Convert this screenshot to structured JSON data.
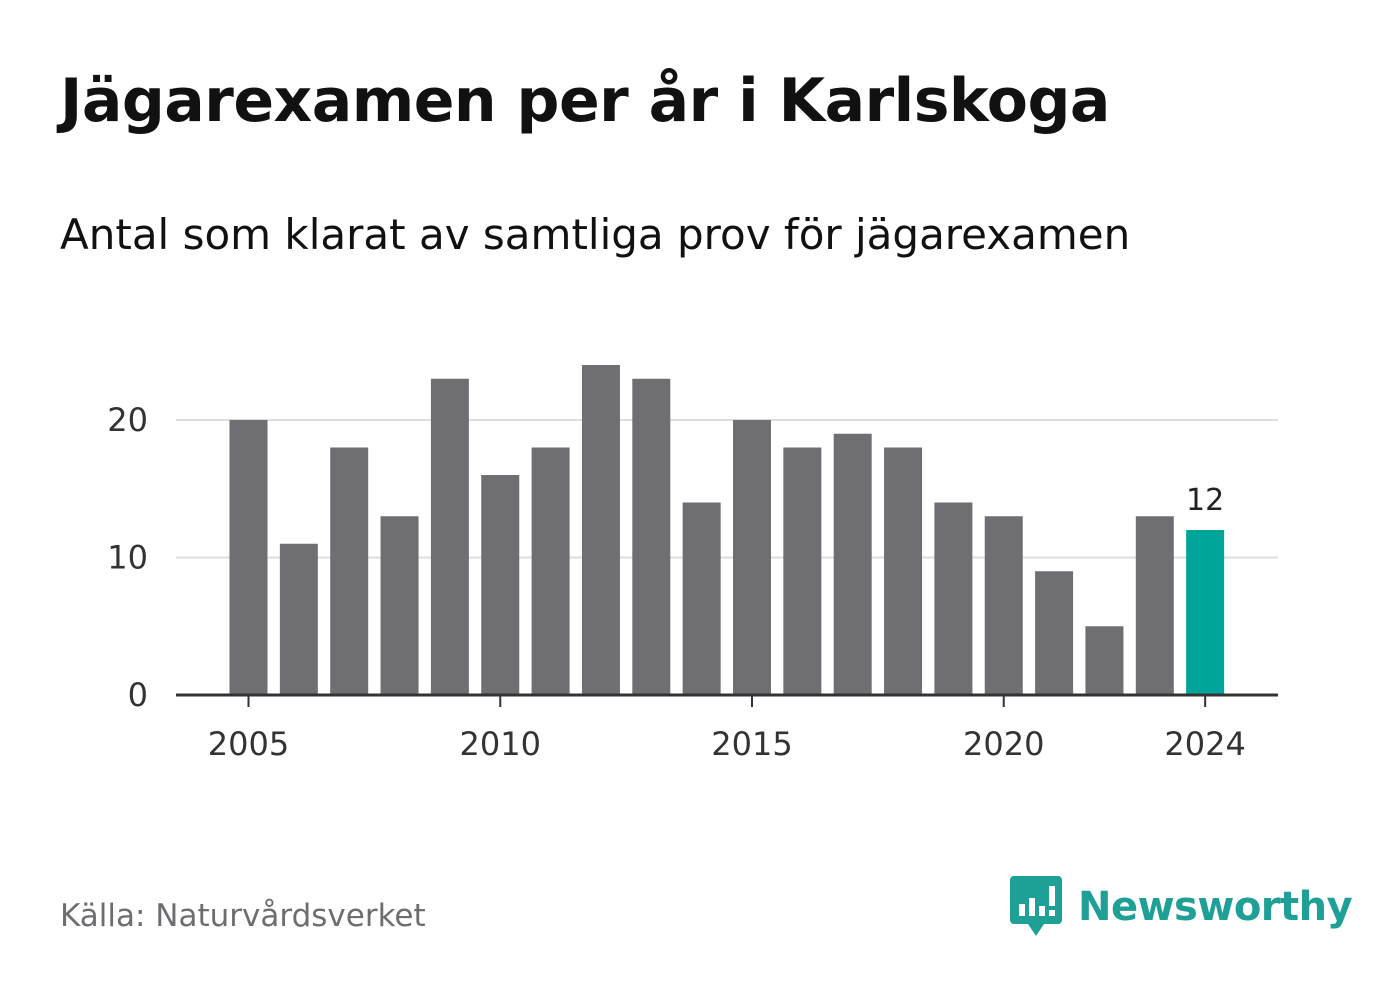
{
  "header": {
    "title": "Jägarexamen per år i Karlskoga",
    "subtitle": "Antal som klarat av samtliga prov för jägarexamen"
  },
  "chart_data": {
    "type": "bar",
    "title": "Jägarexamen per år i Karlskoga",
    "subtitle": "Antal som klarat av samtliga prov för jägarexamen",
    "xlabel": "",
    "ylabel": "",
    "categories": [
      2005,
      2006,
      2007,
      2008,
      2009,
      2010,
      2011,
      2012,
      2013,
      2014,
      2015,
      2016,
      2017,
      2018,
      2019,
      2020,
      2021,
      2022,
      2023,
      2024
    ],
    "values": [
      20,
      11,
      18,
      13,
      23,
      16,
      18,
      24,
      23,
      14,
      20,
      18,
      19,
      18,
      14,
      13,
      9,
      5,
      13,
      12
    ],
    "x_tick_labels": [
      2005,
      2010,
      2015,
      2020,
      2024
    ],
    "y_ticks": [
      0,
      10,
      20
    ],
    "ylim": [
      0,
      24
    ],
    "grid": "horizontal",
    "highlight": {
      "category": 2024,
      "value": 12,
      "label": "12"
    },
    "colors": {
      "bar": "#6e6e73",
      "highlight": "#00a59a",
      "grid": "#dddddd",
      "axis": "#333333"
    }
  },
  "footer": {
    "source": "Källa: Naturvårdsverket",
    "brand": "Newsworthy",
    "brand_icon": "newsworthy-logo-icon",
    "brand_color": "#1fa096"
  }
}
